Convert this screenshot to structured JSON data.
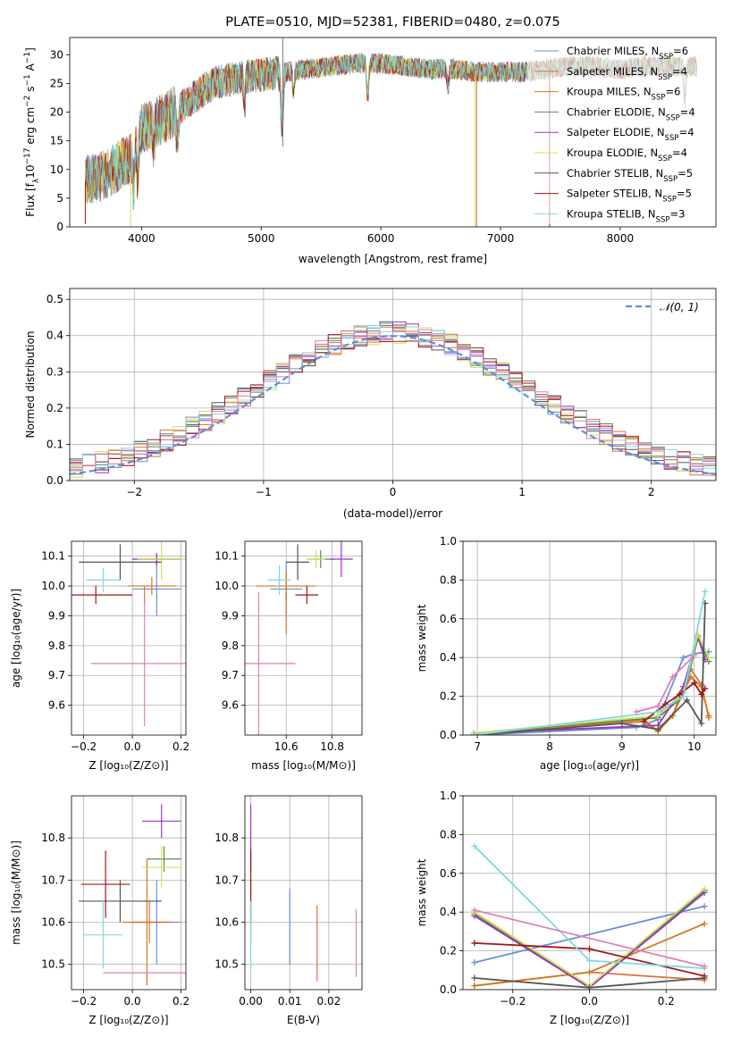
{
  "colors": {
    "chabrier_miles": "#6a8fd8",
    "salpeter_miles": "#e0703a",
    "kroupa_miles": "#d2771d",
    "chabrier_elodie": "#5b8a5a",
    "salpeter_elodie": "#9b36c0",
    "kroupa_elodie": "#cfe05b",
    "chabrier_stelib": "#555555",
    "salpeter_stelib": "#a01818",
    "kroupa_stelib": "#7fd8e0",
    "extra_pink": "#e07fb5",
    "normal_curve": "#5f8fd8"
  },
  "chart_data": [
    {
      "id": "spectrum",
      "type": "line",
      "title": "PLATE=0510, MJD=52381, FIBERID=0480, z=0.075",
      "xlabel": "wavelength [Angstrom, rest frame]",
      "ylabel": "Flux [fλ10⁻¹⁷ erg cm⁻² s⁻¹ A⁻¹]",
      "xlim": [
        3400,
        8800
      ],
      "ylim": [
        0,
        33
      ],
      "xticks": [
        4000,
        5000,
        6000,
        7000,
        8000
      ],
      "yticks": [
        0,
        5,
        10,
        15,
        20,
        25,
        30
      ],
      "continuum_x": [
        3530,
        3700,
        3900,
        4000,
        4200,
        4400,
        4600,
        4800,
        5000,
        5200,
        5400,
        5600,
        5800,
        6000,
        6200,
        6400,
        6600,
        6800,
        7000,
        7200,
        7400,
        7600,
        7800,
        8000,
        8200,
        8400,
        8600
      ],
      "continuum_y": [
        8,
        9,
        12,
        17,
        19,
        22,
        25,
        26,
        26.5,
        27,
        27.5,
        28,
        28.5,
        28.5,
        28,
        27.5,
        27.5,
        27,
        27,
        27,
        27.5,
        28,
        28,
        27.5,
        28,
        28,
        28
      ],
      "legend": [
        {
          "label": "Chabrier MILES, N",
          "sub": "SSP",
          "value": "=6"
        },
        {
          "label": "Salpeter MILES, N",
          "sub": "SSP",
          "value": "=4"
        },
        {
          "label": "Kroupa MILES, N",
          "sub": "SSP",
          "value": "=6"
        },
        {
          "label": "Chabrier ELODIE, N",
          "sub": "SSP",
          "value": "=4"
        },
        {
          "label": "Salpeter ELODIE, N",
          "sub": "SSP",
          "value": "=4"
        },
        {
          "label": "Kroupa ELODIE, N",
          "sub": "SSP",
          "value": "=4"
        },
        {
          "label": "Chabrier STELIB, N",
          "sub": "SSP",
          "value": "=5"
        },
        {
          "label": "Salpeter STELIB, N",
          "sub": "SSP",
          "value": "=5"
        },
        {
          "label": "Kroupa STELIB, N",
          "sub": "SSP",
          "value": "=3"
        }
      ],
      "legend_placement": "right"
    },
    {
      "id": "residuals",
      "type": "histogram",
      "xlabel": "(data-model)/error",
      "ylabel": "Normed distribution",
      "xlim": [
        -2.5,
        2.5
      ],
      "ylim": [
        0,
        0.53
      ],
      "xticks": [
        -2,
        -1,
        0,
        1,
        2
      ],
      "yticks": [
        0.0,
        0.1,
        0.2,
        0.3,
        0.4,
        0.5
      ],
      "grid": true,
      "bin_width": 0.1,
      "legend": [
        {
          "label": "𝒩(0, 1)"
        }
      ],
      "legend_placement": "top-right"
    },
    {
      "id": "age_vs_Z",
      "type": "errorbar",
      "xlabel": "Z [log₁₀(Z/Z⊙)]",
      "ylabel": "age  [log₁₀(age/yr)]",
      "xlim": [
        -0.25,
        0.22
      ],
      "ylim": [
        9.5,
        10.15
      ],
      "xticks": [
        -0.2,
        0.0,
        0.2
      ],
      "yticks": [
        9.6,
        9.7,
        9.8,
        9.9,
        10.0,
        10.1
      ],
      "points": [
        {
          "x": 0.1,
          "y": 9.99,
          "xerr": 0.1,
          "yerr": 0.09
        },
        {
          "x": 0.05,
          "y": 9.97,
          "xerr": 0.0,
          "yerr": 0.03
        },
        {
          "x": 0.08,
          "y": 10.0,
          "xerr": 0.1,
          "yerr": 0.03
        },
        {
          "x": 0.1,
          "y": 10.09,
          "xerr": 0.1,
          "yerr": 0.02
        },
        {
          "x": 0.1,
          "y": 10.09,
          "xerr": 0.1,
          "yerr": 0.02
        },
        {
          "x": 0.12,
          "y": 10.09,
          "xerr": 0.1,
          "yerr": 0.07
        },
        {
          "x": -0.05,
          "y": 10.08,
          "xerr": 0.17,
          "yerr": 0.06
        },
        {
          "x": -0.15,
          "y": 9.97,
          "xerr": 0.15,
          "yerr": 0.03
        },
        {
          "x": -0.12,
          "y": 10.02,
          "xerr": 0.07,
          "yerr": 0.04
        },
        {
          "x": 0.05,
          "y": 9.74,
          "xerr": 0.22,
          "yerr": 0.21
        }
      ]
    },
    {
      "id": "age_vs_mass",
      "type": "errorbar",
      "xlabel": "mass [log₁₀(M/M⊙)]",
      "ylabel": "",
      "xlim": [
        10.42,
        10.93
      ],
      "ylim": [
        9.5,
        10.15
      ],
      "xticks": [
        10.6,
        10.8
      ],
      "yticks": [
        9.6,
        9.7,
        9.8,
        9.9,
        10.0,
        10.1
      ],
      "points": [
        {
          "x": 10.6,
          "y": 9.99,
          "xerr": 0.07,
          "yerr": 0.09
        },
        {
          "x": 10.6,
          "y": 9.91,
          "xerr": 0.0,
          "yerr": 0.07
        },
        {
          "x": 10.6,
          "y": 10.0,
          "xerr": 0.13,
          "yerr": 0.05
        },
        {
          "x": 10.75,
          "y": 10.09,
          "xerr": 0.06,
          "yerr": 0.03
        },
        {
          "x": 10.84,
          "y": 10.09,
          "xerr": 0.05,
          "yerr": 0.06
        },
        {
          "x": 10.73,
          "y": 10.09,
          "xerr": 0.04,
          "yerr": 0.03
        },
        {
          "x": 10.65,
          "y": 10.08,
          "xerr": 0.05,
          "yerr": 0.06
        },
        {
          "x": 10.69,
          "y": 9.97,
          "xerr": 0.05,
          "yerr": 0.03
        },
        {
          "x": 10.57,
          "y": 10.02,
          "xerr": 0.05,
          "yerr": 0.05
        },
        {
          "x": 10.48,
          "y": 9.74,
          "xerr": 0.16,
          "yerr": 0.24
        }
      ]
    },
    {
      "id": "weight_vs_age",
      "type": "line",
      "xlabel": "age  [log₁₀(age/yr)]",
      "ylabel": "mass weight",
      "xlim": [
        6.8,
        10.3
      ],
      "ylim": [
        0,
        1.0
      ],
      "xticks": [
        7,
        8,
        9,
        10
      ],
      "yticks": [
        0.0,
        0.2,
        0.4,
        0.6,
        0.8,
        1.0
      ],
      "series": [
        {
          "x": [
            6.95,
            9.2,
            9.5,
            9.85,
            10.0,
            10.2
          ],
          "y": [
            0.0,
            0.04,
            0.08,
            0.4,
            0.42,
            0.43
          ]
        },
        {
          "x": [
            6.95,
            9.3,
            9.5,
            9.7,
            9.95,
            10.1,
            10.2
          ],
          "y": [
            0.0,
            0.08,
            0.02,
            0.1,
            0.34,
            0.26,
            0.09
          ]
        },
        {
          "x": [
            6.95,
            9.3,
            9.5,
            9.7,
            9.95,
            10.1,
            10.2
          ],
          "y": [
            0.0,
            0.07,
            0.02,
            0.1,
            0.3,
            0.25,
            0.1
          ]
        },
        {
          "x": [
            6.95,
            9.5,
            9.85,
            10.05,
            10.2
          ],
          "y": [
            0.01,
            0.09,
            0.2,
            0.5,
            0.38
          ]
        },
        {
          "x": [
            6.95,
            9.5,
            9.85,
            10.05,
            10.15
          ],
          "y": [
            0.01,
            0.05,
            0.25,
            0.51,
            0.39
          ]
        },
        {
          "x": [
            6.95,
            9.5,
            9.85,
            10.05,
            10.2
          ],
          "y": [
            0.01,
            0.1,
            0.22,
            0.52,
            0.4
          ]
        },
        {
          "x": [
            6.95,
            9.0,
            9.5,
            9.9,
            10.1,
            10.15
          ],
          "y": [
            0.0,
            0.06,
            0.03,
            0.18,
            0.06,
            0.68
          ]
        },
        {
          "x": [
            9.3,
            9.6,
            9.8,
            10.0,
            10.1,
            10.15
          ],
          "y": [
            0.07,
            0.16,
            0.21,
            0.27,
            0.21,
            0.24
          ]
        },
        {
          "x": [
            6.95,
            9.5,
            9.85,
            10.15
          ],
          "y": [
            0.0,
            0.12,
            0.2,
            0.74
          ]
        },
        {
          "x": [
            9.2,
            9.5,
            9.7,
            10.0
          ],
          "y": [
            0.12,
            0.15,
            0.3,
            0.41
          ]
        }
      ]
    },
    {
      "id": "mass_vs_Z",
      "type": "errorbar",
      "xlabel": "Z [log₁₀(Z/Z⊙)]",
      "ylabel": "mass [log₁₀(M/M⊙)]",
      "xlim": [
        -0.25,
        0.22
      ],
      "ylim": [
        10.44,
        10.9
      ],
      "xticks": [
        -0.2,
        0.0,
        0.2
      ],
      "yticks": [
        10.5,
        10.6,
        10.7,
        10.8
      ],
      "points": [
        {
          "x": 0.1,
          "y": 10.6,
          "xerr": 0.1,
          "yerr": 0.1
        },
        {
          "x": 0.07,
          "y": 10.6,
          "xerr": 0.07,
          "yerr": 0.05
        },
        {
          "x": 0.06,
          "y": 10.6,
          "xerr": 0.1,
          "yerr": 0.15
        },
        {
          "x": 0.13,
          "y": 10.75,
          "xerr": 0.07,
          "yerr": 0.03
        },
        {
          "x": 0.12,
          "y": 10.84,
          "xerr": 0.08,
          "yerr": 0.04
        },
        {
          "x": 0.12,
          "y": 10.73,
          "xerr": 0.08,
          "yerr": 0.05
        },
        {
          "x": -0.05,
          "y": 10.65,
          "xerr": 0.17,
          "yerr": 0.05
        },
        {
          "x": -0.11,
          "y": 10.69,
          "xerr": 0.1,
          "yerr": 0.08
        },
        {
          "x": -0.12,
          "y": 10.57,
          "xerr": 0.08,
          "yerr": 0.08
        },
        {
          "x": 0.05,
          "y": 10.48,
          "xerr": 0.17,
          "yerr": 0.0
        }
      ]
    },
    {
      "id": "mass_vs_ebv",
      "type": "errorbar",
      "xlabel": "E(B-V)",
      "ylabel": "",
      "xlim": [
        -0.0015,
        0.0285
      ],
      "ylim": [
        10.44,
        10.9
      ],
      "xticks": [
        0.0,
        0.01,
        0.02
      ],
      "yticks": [
        10.5,
        10.6,
        10.7,
        10.8
      ],
      "points": [
        {
          "x": 0.01,
          "y": 10.59,
          "xerr": 0.0,
          "yerr": 0.09
        },
        {
          "x": 0.017,
          "y": 10.55,
          "xerr": 0.0,
          "yerr": 0.09
        },
        {
          "x": 0.0,
          "y": 10.6,
          "xerr": 0.0,
          "yerr": 0.05
        },
        {
          "x": 0.0,
          "y": 10.75,
          "xerr": 0.0,
          "yerr": 0.03
        },
        {
          "x": 0.0,
          "y": 10.8,
          "xerr": 0.0,
          "yerr": 0.08
        },
        {
          "x": 0.0,
          "y": 10.73,
          "xerr": 0.0,
          "yerr": 0.04
        },
        {
          "x": 0.0,
          "y": 10.65,
          "xerr": 0.0,
          "yerr": 0.05
        },
        {
          "x": 0.0,
          "y": 10.69,
          "xerr": 0.0,
          "yerr": 0.08
        },
        {
          "x": 0.0,
          "y": 10.57,
          "xerr": 0.0,
          "yerr": 0.08
        },
        {
          "x": 0.027,
          "y": 10.55,
          "xerr": 0.0,
          "yerr": 0.08
        }
      ]
    },
    {
      "id": "weight_vs_Z",
      "type": "line",
      "xlabel": "Z [log₁₀(Z/Z⊙)]",
      "ylabel": "mass weight",
      "xlim": [
        -0.33,
        0.33
      ],
      "ylim": [
        0,
        1.0
      ],
      "xticks": [
        -0.2,
        0.0,
        0.2
      ],
      "yticks": [
        0.0,
        0.2,
        0.4,
        0.6,
        0.8,
        1.0
      ],
      "series": [
        {
          "x": [
            -0.3,
            0.3
          ],
          "y": [
            0.14,
            0.43
          ]
        },
        {
          "x": [
            -0.3,
            0.0,
            0.3
          ],
          "y": [
            0.02,
            0.09,
            0.05
          ]
        },
        {
          "x": [
            -0.3,
            0.0,
            0.3
          ],
          "y": [
            0.02,
            0.09,
            0.34
          ]
        },
        {
          "x": [
            -0.3,
            0.0,
            0.3
          ],
          "y": [
            0.39,
            0.01,
            0.51
          ]
        },
        {
          "x": [
            -0.3,
            0.0,
            0.3
          ],
          "y": [
            0.38,
            0.01,
            0.5
          ]
        },
        {
          "x": [
            -0.3,
            0.0,
            0.3
          ],
          "y": [
            0.4,
            0.02,
            0.52
          ]
        },
        {
          "x": [
            -0.3,
            0.0,
            0.3
          ],
          "y": [
            0.06,
            0.01,
            0.06
          ]
        },
        {
          "x": [
            -0.3,
            0.0,
            0.3
          ],
          "y": [
            0.24,
            0.21,
            0.07
          ]
        },
        {
          "x": [
            -0.3,
            0.0,
            0.3
          ],
          "y": [
            0.74,
            0.15,
            0.11
          ]
        },
        {
          "x": [
            -0.3,
            0.3
          ],
          "y": [
            0.41,
            0.12
          ]
        }
      ]
    }
  ]
}
